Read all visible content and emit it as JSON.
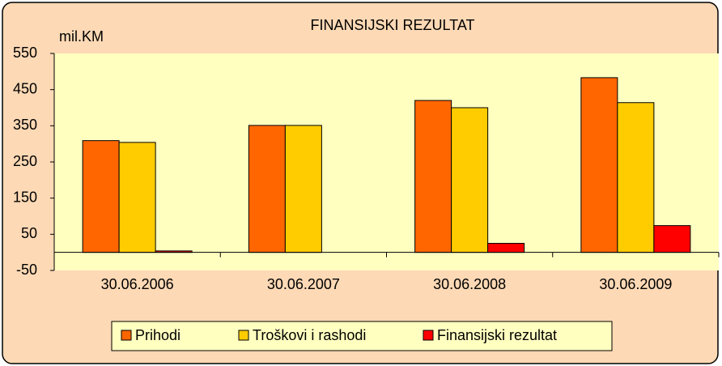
{
  "chart_data": {
    "type": "bar",
    "title": "FINANSIJSKI REZULTAT",
    "y_label": "mil.KM",
    "categories": [
      "30.06.2006",
      "30.06.2007",
      "30.06.2008",
      "30.06.2009"
    ],
    "series": [
      {
        "name": "Prihodi",
        "color": "#ff6600",
        "values": [
          309,
          351,
          420,
          483
        ]
      },
      {
        "name": "Troškovi i rashodi",
        "color": "#ffcc00",
        "values": [
          304,
          351,
          400,
          414
        ]
      },
      {
        "name": "Finansijski rezultat",
        "color": "#ff0000",
        "values": [
          4,
          0,
          25,
          74
        ]
      }
    ],
    "ylim": [
      -50,
      550
    ],
    "yticks": [
      -50,
      50,
      150,
      250,
      350,
      450,
      550
    ],
    "grid": false,
    "legend": "bottom"
  }
}
